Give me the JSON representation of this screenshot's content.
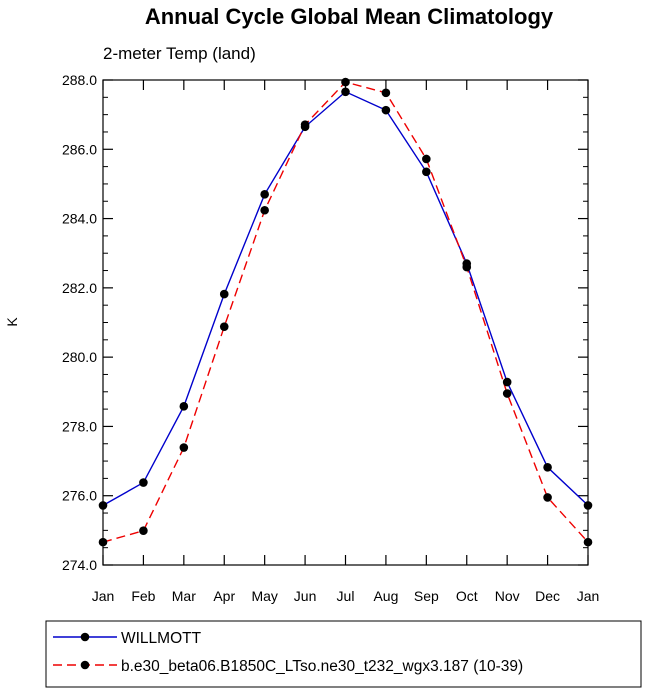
{
  "chart_data": {
    "type": "line",
    "title": "Annual Cycle Global Mean Climatology",
    "subtitle": "2-meter Temp (land)",
    "ylabel": "K",
    "xlabel": "",
    "categories": [
      "Jan",
      "Feb",
      "Mar",
      "Apr",
      "May",
      "Jun",
      "Jul",
      "Aug",
      "Sep",
      "Oct",
      "Nov",
      "Dec",
      "Jan"
    ],
    "ylim": [
      274.0,
      288.0
    ],
    "yticks": [
      "274.0",
      "276.0",
      "278.0",
      "280.0",
      "282.0",
      "284.0",
      "286.0",
      "288.0"
    ],
    "grid": false,
    "legend_position": "bottom",
    "series": [
      {
        "name": "WILLMOTT",
        "color": "#0000cc",
        "dash": "solid",
        "values": [
          275.72,
          276.38,
          278.58,
          281.82,
          284.7,
          286.65,
          287.66,
          287.13,
          285.35,
          282.7,
          279.28,
          276.82,
          275.72
        ]
      },
      {
        "name": "b.e30_beta06.B1850C_LTso.ne30_t232_wgx3.187 (10-39)",
        "color": "#ee0000",
        "dash": "dashed",
        "values": [
          274.66,
          274.99,
          277.39,
          280.88,
          284.24,
          286.71,
          287.94,
          287.63,
          285.72,
          282.6,
          278.95,
          275.95,
          274.66
        ]
      }
    ]
  }
}
